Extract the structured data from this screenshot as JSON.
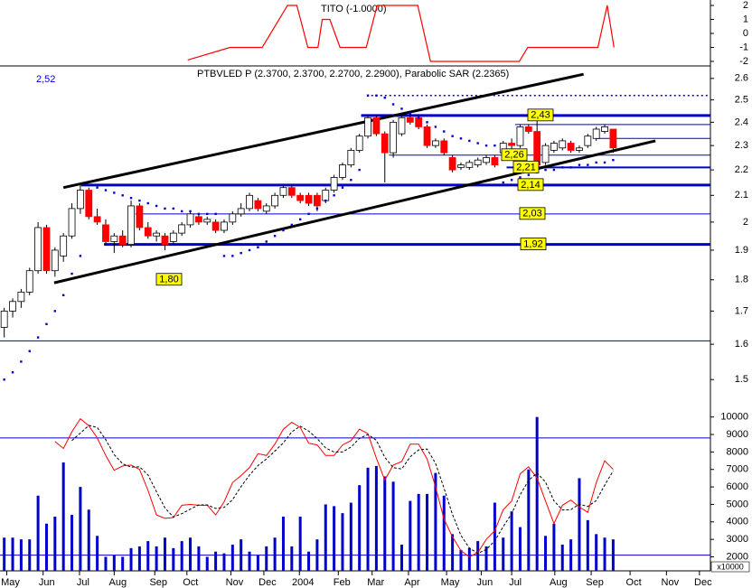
{
  "chart_data": [
    {
      "type": "line",
      "title": "TITO (-1.0000)",
      "x": [
        21.7,
        26.7,
        30.5,
        33.5,
        34.6,
        35.9,
        37.1,
        37.6,
        38.5,
        39.7,
        42.8,
        44.1,
        48.9,
        50.4,
        60.9,
        61.9,
        70.2,
        71.3,
        72.1
      ],
      "series": [
        {
          "color": "#ff0000",
          "values": [
            -1.9,
            -1,
            -1,
            2,
            2,
            -1,
            -1,
            1,
            1,
            -1,
            -1,
            2,
            2,
            -2,
            -2,
            -1,
            -1,
            2,
            -1
          ]
        }
      ],
      "xlim": [
        -0.5,
        83.5
      ],
      "ylim": [
        -2.26,
        2.39
      ],
      "yticks": [
        -2,
        -1,
        0,
        1,
        2
      ]
    },
    {
      "type": "candlestick",
      "title": "PTBVLED P (2.3700, 2.3700, 2.2700, 2.2900), Parabolic SAR (2.2365)",
      "annotation": "2,52",
      "log_scale": true,
      "up_color": "#ffffff",
      "down_color": "#ff0000",
      "open": [
        1.65,
        1.7,
        1.73,
        1.76,
        1.83,
        1.98,
        1.83,
        1.88,
        1.95,
        2.05,
        2.12,
        2.02,
        1.99,
        1.93,
        1.95,
        1.92,
        2.06,
        1.98,
        1.95,
        1.95,
        1.93,
        1.96,
        1.99,
        2.02,
        2.0,
        2.0,
        1.97,
        2.0,
        2.03,
        2.05,
        2.08,
        2.04,
        2.06,
        2.1,
        2.13,
        2.1,
        2.1,
        2.1,
        2.08,
        2.12,
        2.17,
        2.22,
        2.28,
        2.34,
        2.42,
        2.35,
        2.27,
        2.35,
        2.42,
        2.42,
        2.38,
        2.3,
        2.32,
        2.25,
        2.21,
        2.21,
        2.22,
        2.23,
        2.25,
        2.27,
        2.31,
        2.3,
        2.38,
        2.36,
        2.23,
        2.28,
        2.29,
        2.31,
        2.28,
        2.3,
        2.33,
        2.36,
        2.37
      ],
      "high": [
        1.71,
        1.74,
        1.77,
        1.84,
        2.0,
        1.99,
        1.91,
        1.96,
        2.07,
        2.14,
        2.13,
        2.05,
        2.01,
        1.96,
        1.97,
        2.08,
        2.07,
        2.0,
        1.97,
        1.96,
        1.97,
        2.0,
        2.04,
        2.03,
        2.02,
        2.01,
        2.01,
        2.04,
        2.07,
        2.11,
        2.09,
        2.07,
        2.11,
        2.14,
        2.14,
        2.11,
        2.11,
        2.11,
        2.13,
        2.18,
        2.23,
        2.29,
        2.35,
        2.43,
        2.43,
        2.36,
        2.41,
        2.43,
        2.44,
        2.43,
        2.39,
        2.33,
        2.33,
        2.26,
        2.23,
        2.24,
        2.25,
        2.26,
        2.26,
        2.32,
        2.33,
        2.39,
        2.39,
        2.41,
        2.31,
        2.32,
        2.33,
        2.32,
        2.3,
        2.35,
        2.38,
        2.39,
        2.37
      ],
      "low": [
        1.62,
        1.68,
        1.71,
        1.75,
        1.82,
        1.82,
        1.81,
        1.86,
        1.94,
        2.03,
        2.01,
        1.99,
        1.92,
        1.89,
        1.91,
        1.91,
        1.97,
        1.94,
        1.93,
        1.9,
        1.92,
        1.95,
        1.98,
        1.99,
        1.99,
        1.96,
        1.96,
        1.99,
        2.02,
        2.04,
        2.04,
        2.03,
        2.05,
        2.09,
        2.09,
        2.07,
        2.06,
        2.04,
        2.07,
        2.11,
        2.16,
        2.21,
        2.27,
        2.33,
        2.34,
        2.15,
        2.25,
        2.34,
        2.39,
        2.37,
        2.29,
        2.29,
        2.26,
        2.19,
        2.2,
        2.2,
        2.21,
        2.22,
        2.21,
        2.26,
        2.28,
        2.29,
        2.35,
        2.21,
        2.22,
        2.27,
        2.28,
        2.27,
        2.27,
        2.29,
        2.32,
        2.35,
        2.27
      ],
      "close": [
        1.7,
        1.73,
        1.76,
        1.83,
        1.98,
        1.83,
        1.9,
        1.95,
        2.05,
        2.12,
        2.02,
        2.0,
        1.93,
        1.95,
        1.92,
        2.06,
        1.98,
        1.95,
        1.96,
        1.92,
        1.96,
        1.99,
        2.03,
        2.0,
        2.01,
        1.97,
        2.0,
        2.03,
        2.05,
        2.1,
        2.05,
        2.06,
        2.1,
        2.13,
        2.1,
        2.08,
        2.07,
        2.06,
        2.12,
        2.17,
        2.22,
        2.28,
        2.34,
        2.42,
        2.35,
        2.27,
        2.4,
        2.42,
        2.4,
        2.38,
        2.3,
        2.32,
        2.27,
        2.2,
        2.22,
        2.23,
        2.24,
        2.25,
        2.22,
        2.31,
        2.3,
        2.38,
        2.36,
        2.22,
        2.3,
        2.31,
        2.32,
        2.28,
        2.29,
        2.34,
        2.37,
        2.38,
        2.29
      ],
      "sar": {
        "color": "#0000cc",
        "values": [
          1.5,
          1.52,
          1.55,
          1.58,
          1.62,
          1.66,
          1.7,
          1.75,
          1.82,
          1.88,
          2.14,
          2.13,
          2.12,
          2.11,
          2.1,
          2.09,
          2.08,
          2.07,
          2.06,
          2.05,
          2.05,
          2.04,
          2.04,
          2.03,
          2.03,
          2.03,
          1.88,
          1.88,
          1.89,
          1.9,
          1.91,
          1.93,
          1.95,
          1.97,
          1.99,
          2.01,
          2.03,
          2.05,
          2.08,
          2.1,
          2.13,
          2.16,
          2.2,
          2.52,
          2.52,
          2.51,
          2.48,
          2.46,
          2.44,
          2.42,
          2.4,
          2.38,
          2.36,
          2.34,
          2.33,
          2.32,
          2.31,
          2.3,
          2.3,
          2.15,
          2.16,
          2.17,
          2.18,
          2.19,
          2.2,
          2.2,
          2.21,
          2.21,
          2.22,
          2.22,
          2.23,
          2.23,
          2.24
        ]
      },
      "level_color": "#0000cc",
      "levels": [
        {
          "value": 2.52,
          "from": 43.4,
          "weight": "dotted"
        },
        {
          "value": 2.43,
          "from": 42.2,
          "weight": "thick",
          "label": "2,43"
        },
        {
          "value": 2.39,
          "from": 60.4,
          "weight": "thin"
        },
        {
          "value": 2.33,
          "from": 70,
          "weight": "thin"
        },
        {
          "value": 2.26,
          "from": 45.5,
          "weight": "thin",
          "label": "2,26"
        },
        {
          "value": 2.21,
          "from": 59.4,
          "weight": "medium",
          "label": "2,21"
        },
        {
          "value": 2.14,
          "from": 9.1,
          "weight": "thick",
          "label": "2,14"
        },
        {
          "value": 2.03,
          "from": 15.5,
          "weight": "thin",
          "label": "2,03"
        },
        {
          "value": 1.92,
          "from": 11.8,
          "weight": "thick",
          "label": "1,92"
        },
        {
          "value": 1.8,
          "from": 18,
          "weight": "none",
          "label": "1,80"
        },
        {
          "value": 1.61,
          "from": -0.5,
          "weight": "thin"
        }
      ],
      "trendlines": [
        {
          "color": "#000000",
          "x": [
            7,
            68.5
          ],
          "values": [
            2.13,
            2.62
          ]
        },
        {
          "color": "#000000",
          "x": [
            5.9,
            77
          ],
          "values": [
            1.79,
            2.32
          ]
        }
      ],
      "xlim": [
        -0.5,
        83.5
      ],
      "ylim": [
        1.44,
        2.66
      ],
      "yticks": [
        1.5,
        1.6,
        1.7,
        1.8,
        1.9,
        2,
        2.1,
        2.2,
        2.3,
        2.4,
        2.5,
        2.6
      ]
    },
    {
      "type": "bar",
      "color": "#0000cc",
      "unit_label": "x10000",
      "values": [
        3100,
        3100,
        3000,
        3000,
        5500,
        3900,
        4300,
        7400,
        4400,
        6000,
        4700,
        3200,
        2000,
        2100,
        2000,
        2500,
        2600,
        2900,
        2600,
        3100,
        2500,
        2900,
        3100,
        2600,
        2000,
        2300,
        2200,
        2700,
        3000,
        2300,
        2100,
        2600,
        3100,
        4300,
        2600,
        4300,
        2300,
        3000,
        5000,
        4900,
        4500,
        5100,
        6100,
        7100,
        7200,
        6600,
        6300,
        2700,
        5200,
        5600,
        5600,
        6800,
        5500,
        3300,
        2400,
        2500,
        2900,
        2600,
        5100,
        3100,
        4600,
        3700,
        7000,
        10000,
        3200,
        3900,
        2700,
        3000,
        6500,
        4100,
        3300,
        3100,
        3000
      ],
      "lines": [
        {
          "color": "#ff0000",
          "style": "solid",
          "values": [
            null,
            null,
            null,
            null,
            null,
            null,
            8600,
            8200,
            9150,
            9900,
            9500,
            8800,
            7800,
            6950,
            7200,
            7250,
            7000,
            5800,
            4400,
            4200,
            4250,
            4950,
            5000,
            4950,
            4950,
            4400,
            5150,
            6250,
            6650,
            7100,
            7900,
            7800,
            8450,
            9300,
            9700,
            9400,
            8500,
            8400,
            7800,
            7800,
            8400,
            8650,
            9300,
            9050,
            7650,
            6400,
            7250,
            7450,
            8450,
            8450,
            7600,
            6000,
            4150,
            3150,
            2350,
            2000,
            2250,
            3000,
            3500,
            4700,
            5200,
            6750,
            7150,
            6500,
            5200,
            3900,
            4950,
            5250,
            4850,
            4550,
            6250,
            7500,
            7000
          ]
        },
        {
          "color": "#000000",
          "style": "dashed",
          "values": [
            null,
            null,
            null,
            null,
            null,
            null,
            null,
            null,
            8650,
            9080,
            9520,
            9400,
            8700,
            7850,
            7320,
            7130,
            7150,
            6680,
            5730,
            4800,
            4280,
            4470,
            4730,
            4970,
            4970,
            4770,
            4830,
            5270,
            6020,
            6670,
            7220,
            7600,
            8050,
            8520,
            9150,
            9470,
            9200,
            8770,
            8230,
            8000,
            8000,
            8280,
            8780,
            9000,
            8670,
            7700,
            7100,
            7030,
            7720,
            8120,
            8170,
            7350,
            5920,
            4430,
            3220,
            2500,
            2200,
            2420,
            2920,
            3730,
            4470,
            5550,
            6370,
            6800,
            6280,
            5200,
            4680,
            4700,
            5020,
            4880,
            5220,
            6100,
            6920
          ]
        }
      ],
      "levels": [
        8800,
        2100
      ],
      "xlim": [
        -0.5,
        83.5
      ],
      "ylim": [
        1200,
        10500
      ],
      "yticks": [
        2000,
        3000,
        4000,
        5000,
        6000,
        7000,
        8000,
        9000,
        10000
      ],
      "xticks": [
        {
          "value": 0.3,
          "label": "May"
        },
        {
          "value": 4.6,
          "label": "Jun"
        },
        {
          "value": 8.9,
          "label": "Jul"
        },
        {
          "value": 13,
          "label": "Aug"
        },
        {
          "value": 17.8,
          "label": "Sep"
        },
        {
          "value": 21.6,
          "label": "Oct"
        },
        {
          "value": 26.8,
          "label": "Nov"
        },
        {
          "value": 30.7,
          "label": "Dec"
        },
        {
          "value": 34.9,
          "label": "2004"
        },
        {
          "value": 39.5,
          "label": "Feb"
        },
        {
          "value": 43.5,
          "label": "Mar"
        },
        {
          "value": 47.8,
          "label": "Apr"
        },
        {
          "value": 52.3,
          "label": "May"
        },
        {
          "value": 56.4,
          "label": "Jun"
        },
        {
          "value": 60,
          "label": "Jul"
        },
        {
          "value": 65.1,
          "label": "Aug"
        },
        {
          "value": 69.4,
          "label": "Sep"
        },
        {
          "value": 74,
          "label": "Oct"
        },
        {
          "value": 78.3,
          "label": "Nov"
        },
        {
          "value": 82.2,
          "label": "Dec"
        }
      ]
    }
  ]
}
